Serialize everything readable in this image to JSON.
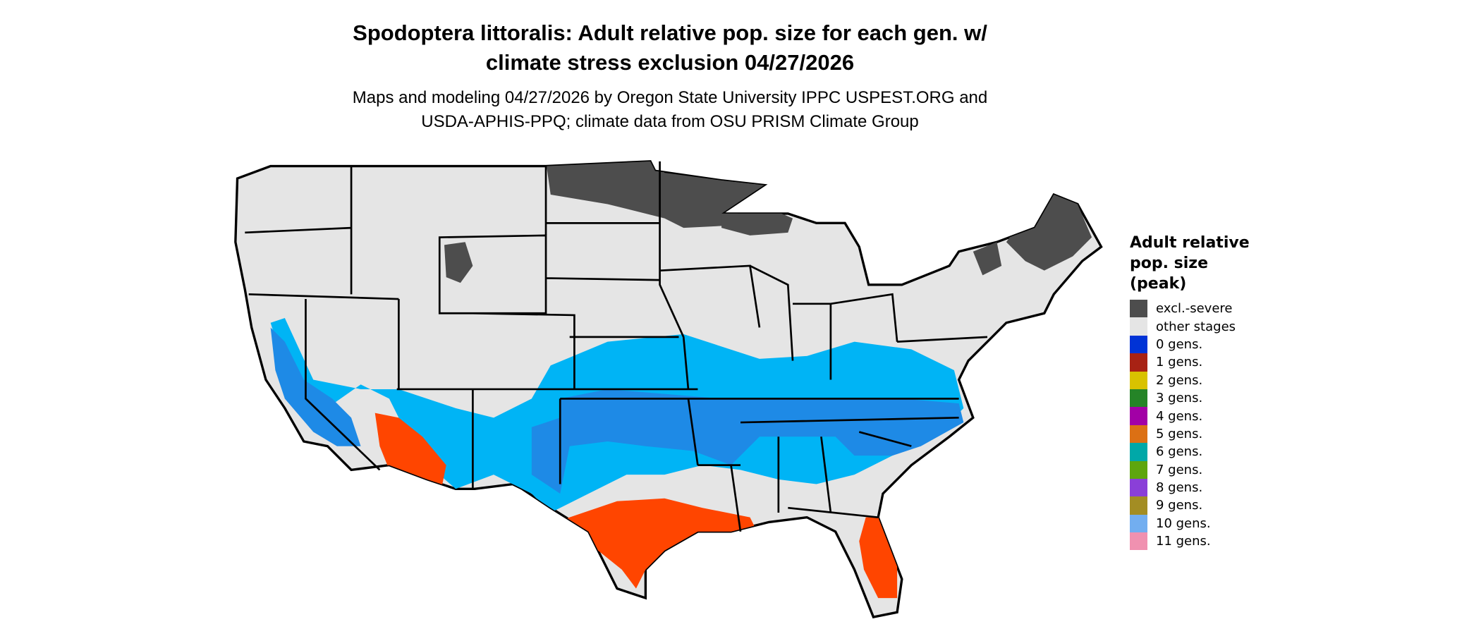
{
  "title": {
    "line1": "Spodoptera littoralis: Adult relative pop. size for each gen. w/",
    "line2": "climate stress exclusion 04/27/2026"
  },
  "subtitle": {
    "line1": "Maps and modeling 04/27/2026 by Oregon State University IPPC USPEST.ORG and",
    "line2": "USDA-APHIS-PPQ; climate data from OSU PRISM Climate Group"
  },
  "legend": {
    "title_lines": [
      "Adult relative",
      "pop. size",
      "(peak)"
    ],
    "items": [
      {
        "label": "excl.-severe",
        "color": "#4d4d4d"
      },
      {
        "label": "other stages",
        "color": "#e5e5e5"
      },
      {
        "label": "0 gens.",
        "color": "#0033d6"
      },
      {
        "label": "1 gens.",
        "color": "#a82214"
      },
      {
        "label": "2 gens.",
        "color": "#d9c200"
      },
      {
        "label": "3 gens.",
        "color": "#258427"
      },
      {
        "label": "4 gens.",
        "color": "#a200a6"
      },
      {
        "label": "5 gens.",
        "color": "#dc7014"
      },
      {
        "label": "6 gens.",
        "color": "#00a8a8"
      },
      {
        "label": "7 gens.",
        "color": "#5ea60e"
      },
      {
        "label": "8 gens.",
        "color": "#8a3fd8"
      },
      {
        "label": "9 gens.",
        "color": "#a38d23"
      },
      {
        "label": "10 gens.",
        "color": "#72aef0"
      },
      {
        "label": "11 gens.",
        "color": "#f091b0"
      }
    ]
  },
  "map_colors": {
    "land": "#e5e5e5",
    "excluded": "#4d4d4d",
    "light_blue": "#00b4f5",
    "mid_blue": "#1e8ae6",
    "orange_red": "#ff4500",
    "border": "#000000"
  }
}
